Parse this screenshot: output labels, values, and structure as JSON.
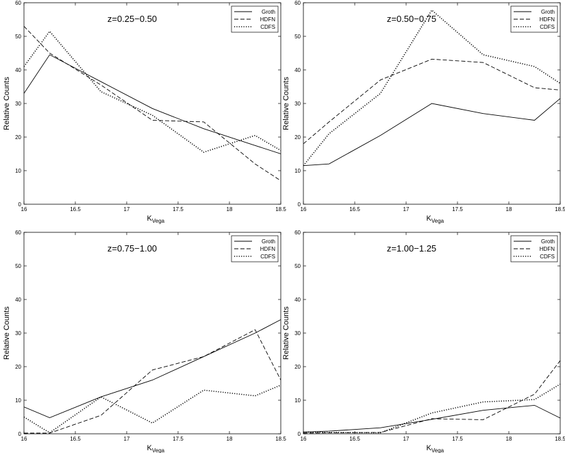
{
  "chart_data": [
    {
      "type": "line",
      "annotation": "z=0.25−0.50",
      "xlabel_main": "K",
      "xlabel_sub": "Vega",
      "ylabel": "Relative Counts",
      "xlim": [
        16,
        18.5
      ],
      "ylim": [
        0,
        60
      ],
      "xticks": [
        "16",
        "16.5",
        "17",
        "17.5",
        "18",
        "18.5"
      ],
      "yticks": [
        "0",
        "10",
        "20",
        "30",
        "40",
        "50",
        "60"
      ],
      "legend_position": "top-right",
      "series": [
        {
          "name": "Groth",
          "style": "solid",
          "x": [
            16,
            16.25,
            16.75,
            17.25,
            17.75,
            18.25,
            18.5
          ],
          "y": [
            33,
            44.5,
            36.5,
            28.5,
            22.5,
            17.5,
            15
          ]
        },
        {
          "name": "HDFN",
          "style": "dashed",
          "x": [
            16,
            16.25,
            16.75,
            17.25,
            17.75,
            18.25,
            18.5
          ],
          "y": [
            53,
            45,
            35.5,
            25,
            24.5,
            12,
            7
          ]
        },
        {
          "name": "CDFS",
          "style": "dotted",
          "x": [
            16,
            16.25,
            16.75,
            17.25,
            17.75,
            18.25,
            18.5
          ],
          "y": [
            41,
            51.5,
            33.5,
            26.5,
            15.5,
            20.5,
            16
          ]
        }
      ]
    },
    {
      "type": "line",
      "annotation": "z=0.50−0.75",
      "xlabel_main": "K",
      "xlabel_sub": "Vega",
      "ylabel": "Relative Counts",
      "xlim": [
        16,
        18.5
      ],
      "ylim": [
        0,
        60
      ],
      "xticks": [
        "16",
        "16.5",
        "17",
        "17.5",
        "18",
        "18.5"
      ],
      "yticks": [
        "0",
        "10",
        "20",
        "30",
        "40",
        "50",
        "60"
      ],
      "legend_position": "top-right",
      "series": [
        {
          "name": "Groth",
          "style": "solid",
          "x": [
            16,
            16.25,
            16.75,
            17.25,
            17.75,
            18.25,
            18.5
          ],
          "y": [
            11.5,
            12,
            20.5,
            30,
            27,
            25,
            31.5
          ]
        },
        {
          "name": "HDFN",
          "style": "dashed",
          "x": [
            16,
            16.25,
            16.75,
            17.25,
            17.75,
            18.25,
            18.5
          ],
          "y": [
            18,
            24.5,
            37,
            43.2,
            42.2,
            34.7,
            34
          ]
        },
        {
          "name": "CDFS",
          "style": "dotted",
          "x": [
            16,
            16.25,
            16.75,
            17.25,
            17.75,
            18.25,
            18.5
          ],
          "y": [
            11.5,
            21,
            33,
            57.8,
            44.5,
            41,
            36
          ]
        }
      ]
    },
    {
      "type": "line",
      "annotation": "z=0.75−1.00",
      "xlabel_main": "K",
      "xlabel_sub": "Vega",
      "ylabel": "Relative Counts",
      "xlim": [
        16,
        18.5
      ],
      "ylim": [
        0,
        60
      ],
      "xticks": [
        "16",
        "16.5",
        "17",
        "17.5",
        "18",
        "18.5"
      ],
      "yticks": [
        "0",
        "10",
        "20",
        "30",
        "40",
        "50",
        "60"
      ],
      "legend_position": "top-right",
      "series": [
        {
          "name": "Groth",
          "style": "solid",
          "x": [
            16,
            16.25,
            16.75,
            17.25,
            17.75,
            18.25,
            18.5
          ],
          "y": [
            8,
            4.8,
            11,
            16,
            23,
            30,
            34
          ]
        },
        {
          "name": "HDFN",
          "style": "dashed",
          "x": [
            16,
            16.25,
            16.75,
            17.25,
            17.75,
            18.25,
            18.5
          ],
          "y": [
            0.2,
            0.2,
            5.5,
            19,
            23,
            31,
            16
          ]
        },
        {
          "name": "CDFS",
          "style": "dotted",
          "x": [
            16,
            16.25,
            16.75,
            17.25,
            17.75,
            18.25,
            18.5
          ],
          "y": [
            5,
            0.3,
            11,
            3.2,
            13,
            11.3,
            14.5
          ]
        }
      ]
    },
    {
      "type": "line",
      "annotation": "z=1.00−1.25",
      "xlabel_main": "K",
      "xlabel_sub": "Vega",
      "ylabel": "Relative Counts",
      "xlim": [
        16,
        18.5
      ],
      "ylim": [
        0,
        60
      ],
      "xticks": [
        "16",
        "16.5",
        "17",
        "17.5",
        "18",
        "18.5"
      ],
      "yticks": [
        "0",
        "10",
        "20",
        "30",
        "40",
        "50",
        "60"
      ],
      "legend_position": "top-right",
      "series": [
        {
          "name": "Groth",
          "style": "solid",
          "x": [
            16,
            16.25,
            16.75,
            17.25,
            17.75,
            18.25,
            18.5
          ],
          "y": [
            0.5,
            0.8,
            1.8,
            4.3,
            7,
            8.5,
            4.7
          ]
        },
        {
          "name": "HDFN",
          "style": "dashed",
          "x": [
            16,
            16.25,
            16.75,
            17.25,
            17.75,
            18.25,
            18.5
          ],
          "y": [
            0.2,
            0.3,
            0.4,
            4.5,
            4.2,
            11.8,
            21.8
          ]
        },
        {
          "name": "CDFS",
          "style": "dotted",
          "x": [
            16,
            16.25,
            16.75,
            17.25,
            17.75,
            18.25,
            18.5
          ],
          "y": [
            0.5,
            0.4,
            0.3,
            6.2,
            9.5,
            10.2,
            14.8
          ]
        }
      ]
    }
  ]
}
